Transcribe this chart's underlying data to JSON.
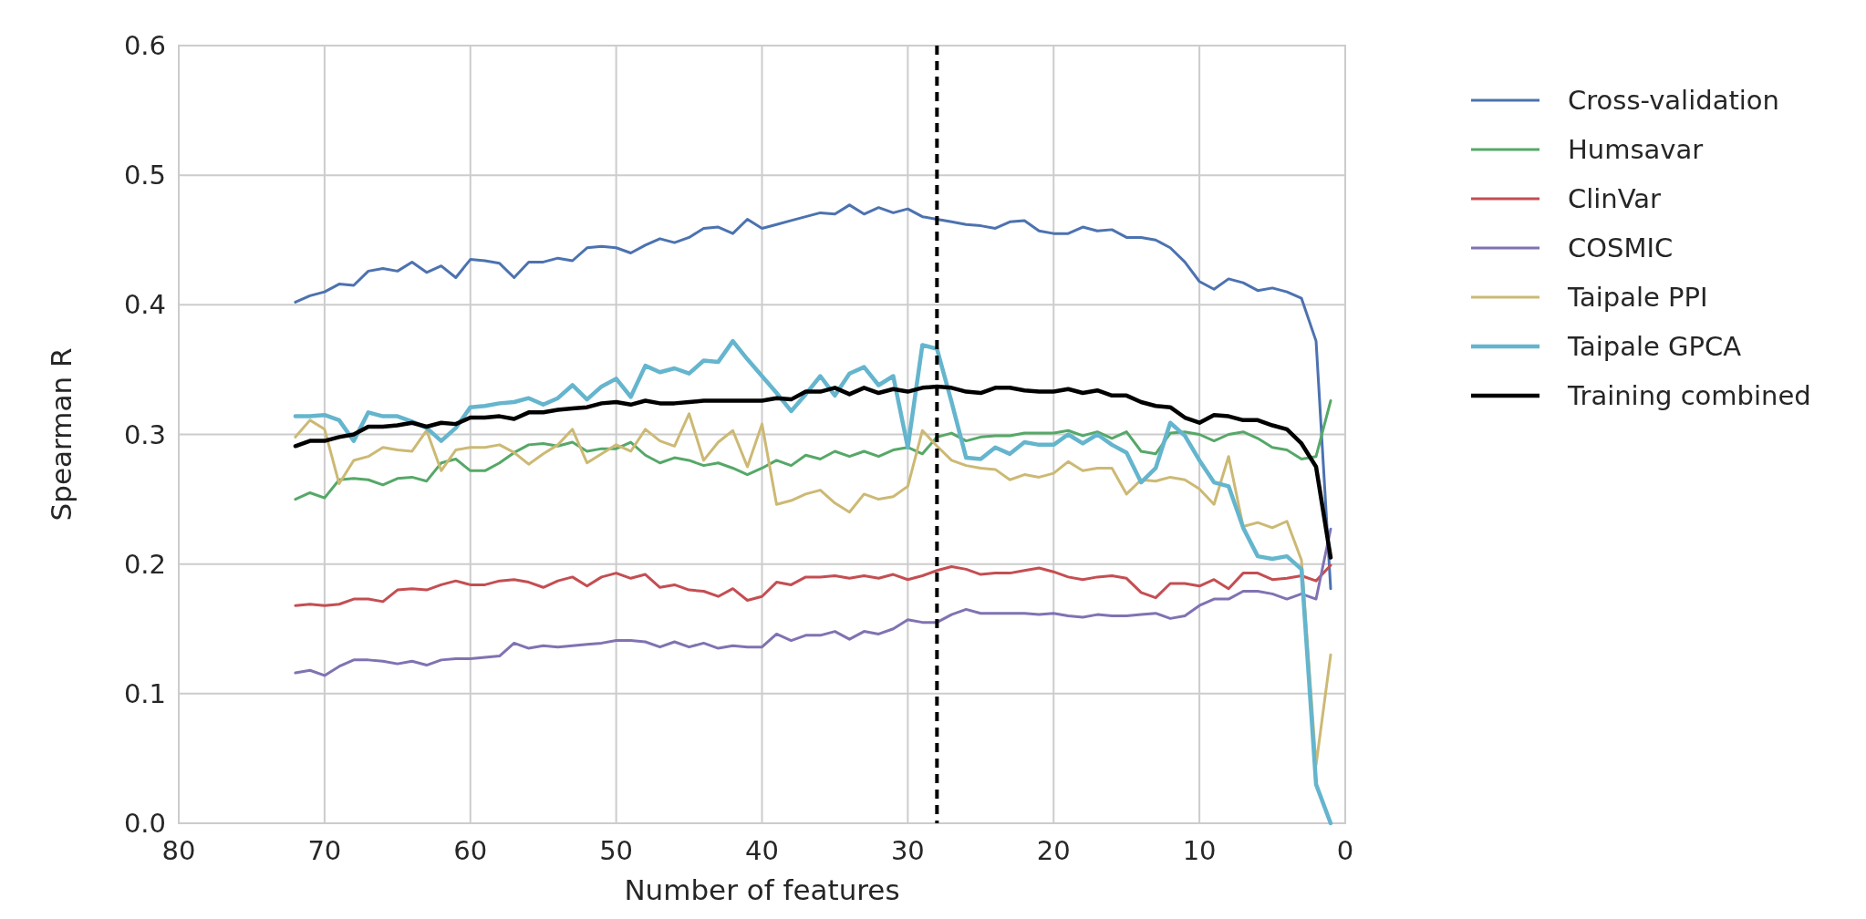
{
  "chart_data": {
    "type": "line",
    "xlabel": "Number of features",
    "ylabel": "Spearman R",
    "x": [
      72,
      71,
      70,
      69,
      68,
      67,
      66,
      65,
      64,
      63,
      62,
      61,
      60,
      59,
      58,
      57,
      56,
      55,
      54,
      53,
      52,
      51,
      50,
      49,
      48,
      47,
      46,
      45,
      44,
      43,
      42,
      41,
      40,
      39,
      38,
      37,
      36,
      35,
      34,
      33,
      32,
      31,
      30,
      29,
      28,
      27,
      26,
      25,
      24,
      23,
      22,
      21,
      20,
      19,
      18,
      17,
      16,
      15,
      14,
      13,
      12,
      11,
      10,
      9,
      8,
      7,
      6,
      5,
      4,
      3,
      2,
      1
    ],
    "xlim": [
      80,
      0
    ],
    "xticks": [
      80,
      70,
      60,
      50,
      40,
      30,
      20,
      10,
      0
    ],
    "ylim": [
      0,
      0.6
    ],
    "yticks": [
      {
        "value": 0,
        "label": "0.0"
      },
      {
        "value": 0.1,
        "label": "0.1"
      },
      {
        "value": 0.2,
        "label": "0.2"
      },
      {
        "value": 0.3,
        "label": "0.3"
      },
      {
        "value": 0.4,
        "label": "0.4"
      },
      {
        "value": 0.5,
        "label": "0.5"
      },
      {
        "value": 0.6,
        "label": "0.6"
      }
    ],
    "grid": true,
    "legend": "top right",
    "line_style": "solid",
    "ref_lines": [
      {
        "axis": "x",
        "value": 28,
        "color": "#000000",
        "line_style": "dashed"
      }
    ],
    "series": [
      {
        "name": "Cross-validation",
        "color": "#4c72b0",
        "values": [
          0.402,
          0.407,
          0.41,
          0.416,
          0.415,
          0.426,
          0.428,
          0.426,
          0.433,
          0.425,
          0.43,
          0.421,
          0.435,
          0.434,
          0.432,
          0.421,
          0.433,
          0.433,
          0.436,
          0.434,
          0.444,
          0.445,
          0.444,
          0.44,
          0.446,
          0.451,
          0.448,
          0.452,
          0.459,
          0.46,
          0.455,
          0.466,
          0.459,
          0.462,
          0.465,
          0.468,
          0.471,
          0.47,
          0.477,
          0.47,
          0.475,
          0.471,
          0.474,
          0.468,
          0.466,
          0.464,
          0.462,
          0.461,
          0.459,
          0.464,
          0.465,
          0.457,
          0.455,
          0.455,
          0.46,
          0.457,
          0.458,
          0.452,
          0.452,
          0.45,
          0.444,
          0.433,
          0.418,
          0.412,
          0.42,
          0.417,
          0.411,
          0.413,
          0.41,
          0.405,
          0.372,
          0.181
        ]
      },
      {
        "name": "Humsavar",
        "color": "#55a868",
        "values": [
          0.25,
          0.255,
          0.251,
          0.265,
          0.266,
          0.265,
          0.261,
          0.266,
          0.267,
          0.264,
          0.278,
          0.281,
          0.272,
          0.272,
          0.278,
          0.286,
          0.292,
          0.293,
          0.291,
          0.294,
          0.287,
          0.289,
          0.289,
          0.294,
          0.284,
          0.278,
          0.282,
          0.28,
          0.276,
          0.278,
          0.274,
          0.269,
          0.274,
          0.28,
          0.276,
          0.284,
          0.281,
          0.287,
          0.283,
          0.287,
          0.283,
          0.288,
          0.29,
          0.285,
          0.298,
          0.301,
          0.295,
          0.298,
          0.299,
          0.299,
          0.301,
          0.301,
          0.301,
          0.303,
          0.299,
          0.302,
          0.297,
          0.302,
          0.287,
          0.285,
          0.301,
          0.302,
          0.3,
          0.295,
          0.3,
          0.302,
          0.297,
          0.29,
          0.288,
          0.281,
          0.283,
          0.326
        ]
      },
      {
        "name": "ClinVar",
        "color": "#c44e52",
        "values": [
          0.168,
          0.169,
          0.168,
          0.169,
          0.173,
          0.173,
          0.171,
          0.18,
          0.181,
          0.18,
          0.184,
          0.187,
          0.184,
          0.184,
          0.187,
          0.188,
          0.186,
          0.182,
          0.187,
          0.19,
          0.183,
          0.19,
          0.193,
          0.189,
          0.192,
          0.182,
          0.184,
          0.18,
          0.179,
          0.175,
          0.181,
          0.172,
          0.175,
          0.186,
          0.184,
          0.19,
          0.19,
          0.191,
          0.189,
          0.191,
          0.189,
          0.192,
          0.188,
          0.191,
          0.195,
          0.198,
          0.196,
          0.192,
          0.193,
          0.193,
          0.195,
          0.197,
          0.194,
          0.19,
          0.188,
          0.19,
          0.191,
          0.189,
          0.178,
          0.174,
          0.185,
          0.185,
          0.183,
          0.188,
          0.181,
          0.193,
          0.193,
          0.188,
          0.189,
          0.191,
          0.187,
          0.199
        ]
      },
      {
        "name": "COSMIC",
        "color": "#8172b2",
        "values": [
          0.116,
          0.118,
          0.114,
          0.121,
          0.126,
          0.126,
          0.125,
          0.123,
          0.125,
          0.122,
          0.126,
          0.127,
          0.127,
          0.128,
          0.129,
          0.139,
          0.135,
          0.137,
          0.136,
          0.137,
          0.138,
          0.139,
          0.141,
          0.141,
          0.14,
          0.136,
          0.14,
          0.136,
          0.139,
          0.135,
          0.137,
          0.136,
          0.136,
          0.146,
          0.141,
          0.145,
          0.145,
          0.148,
          0.142,
          0.148,
          0.146,
          0.15,
          0.157,
          0.155,
          0.155,
          0.161,
          0.165,
          0.162,
          0.162,
          0.162,
          0.162,
          0.161,
          0.162,
          0.16,
          0.159,
          0.161,
          0.16,
          0.16,
          0.161,
          0.162,
          0.158,
          0.16,
          0.168,
          0.173,
          0.173,
          0.179,
          0.179,
          0.177,
          0.173,
          0.177,
          0.173,
          0.227
        ]
      },
      {
        "name": "Taipale PPI",
        "color": "#ccb974",
        "values": [
          0.298,
          0.311,
          0.304,
          0.262,
          0.28,
          0.283,
          0.29,
          0.288,
          0.287,
          0.303,
          0.272,
          0.288,
          0.29,
          0.29,
          0.292,
          0.286,
          0.277,
          0.285,
          0.292,
          0.304,
          0.278,
          0.285,
          0.292,
          0.287,
          0.304,
          0.295,
          0.291,
          0.316,
          0.28,
          0.294,
          0.303,
          0.275,
          0.308,
          0.246,
          0.249,
          0.254,
          0.257,
          0.247,
          0.24,
          0.254,
          0.25,
          0.252,
          0.26,
          0.303,
          0.291,
          0.28,
          0.276,
          0.274,
          0.273,
          0.265,
          0.269,
          0.267,
          0.27,
          0.279,
          0.272,
          0.274,
          0.274,
          0.254,
          0.265,
          0.264,
          0.267,
          0.265,
          0.258,
          0.246,
          0.283,
          0.229,
          0.232,
          0.228,
          0.233,
          0.203,
          0.045,
          0.13
        ]
      },
      {
        "name": "Taipale GPCA",
        "color": "#64b5cd",
        "values": [
          0.314,
          0.314,
          0.315,
          0.311,
          0.295,
          0.317,
          0.314,
          0.314,
          0.31,
          0.305,
          0.295,
          0.305,
          0.321,
          0.322,
          0.324,
          0.325,
          0.328,
          0.323,
          0.328,
          0.338,
          0.327,
          0.337,
          0.343,
          0.329,
          0.353,
          0.348,
          0.351,
          0.347,
          0.357,
          0.356,
          0.372,
          0.358,
          0.345,
          0.332,
          0.318,
          0.331,
          0.345,
          0.33,
          0.347,
          0.352,
          0.338,
          0.345,
          0.29,
          0.369,
          0.366,
          0.325,
          0.282,
          0.281,
          0.29,
          0.285,
          0.294,
          0.292,
          0.292,
          0.3,
          0.293,
          0.3,
          0.292,
          0.286,
          0.263,
          0.274,
          0.309,
          0.299,
          0.28,
          0.263,
          0.26,
          0.228,
          0.206,
          0.204,
          0.206,
          0.196,
          0.03,
          0.0
        ]
      },
      {
        "name": "Training combined",
        "color": "#000000",
        "values": [
          0.291,
          0.295,
          0.295,
          0.298,
          0.3,
          0.306,
          0.306,
          0.307,
          0.309,
          0.306,
          0.309,
          0.308,
          0.313,
          0.313,
          0.314,
          0.312,
          0.317,
          0.317,
          0.319,
          0.32,
          0.321,
          0.324,
          0.325,
          0.323,
          0.326,
          0.324,
          0.324,
          0.325,
          0.326,
          0.326,
          0.326,
          0.326,
          0.326,
          0.328,
          0.327,
          0.333,
          0.333,
          0.336,
          0.331,
          0.336,
          0.332,
          0.335,
          0.333,
          0.336,
          0.337,
          0.336,
          0.333,
          0.332,
          0.336,
          0.336,
          0.334,
          0.333,
          0.333,
          0.335,
          0.332,
          0.334,
          0.33,
          0.33,
          0.325,
          0.322,
          0.321,
          0.313,
          0.309,
          0.315,
          0.314,
          0.311,
          0.311,
          0.307,
          0.304,
          0.293,
          0.275,
          0.205
        ]
      }
    ]
  }
}
